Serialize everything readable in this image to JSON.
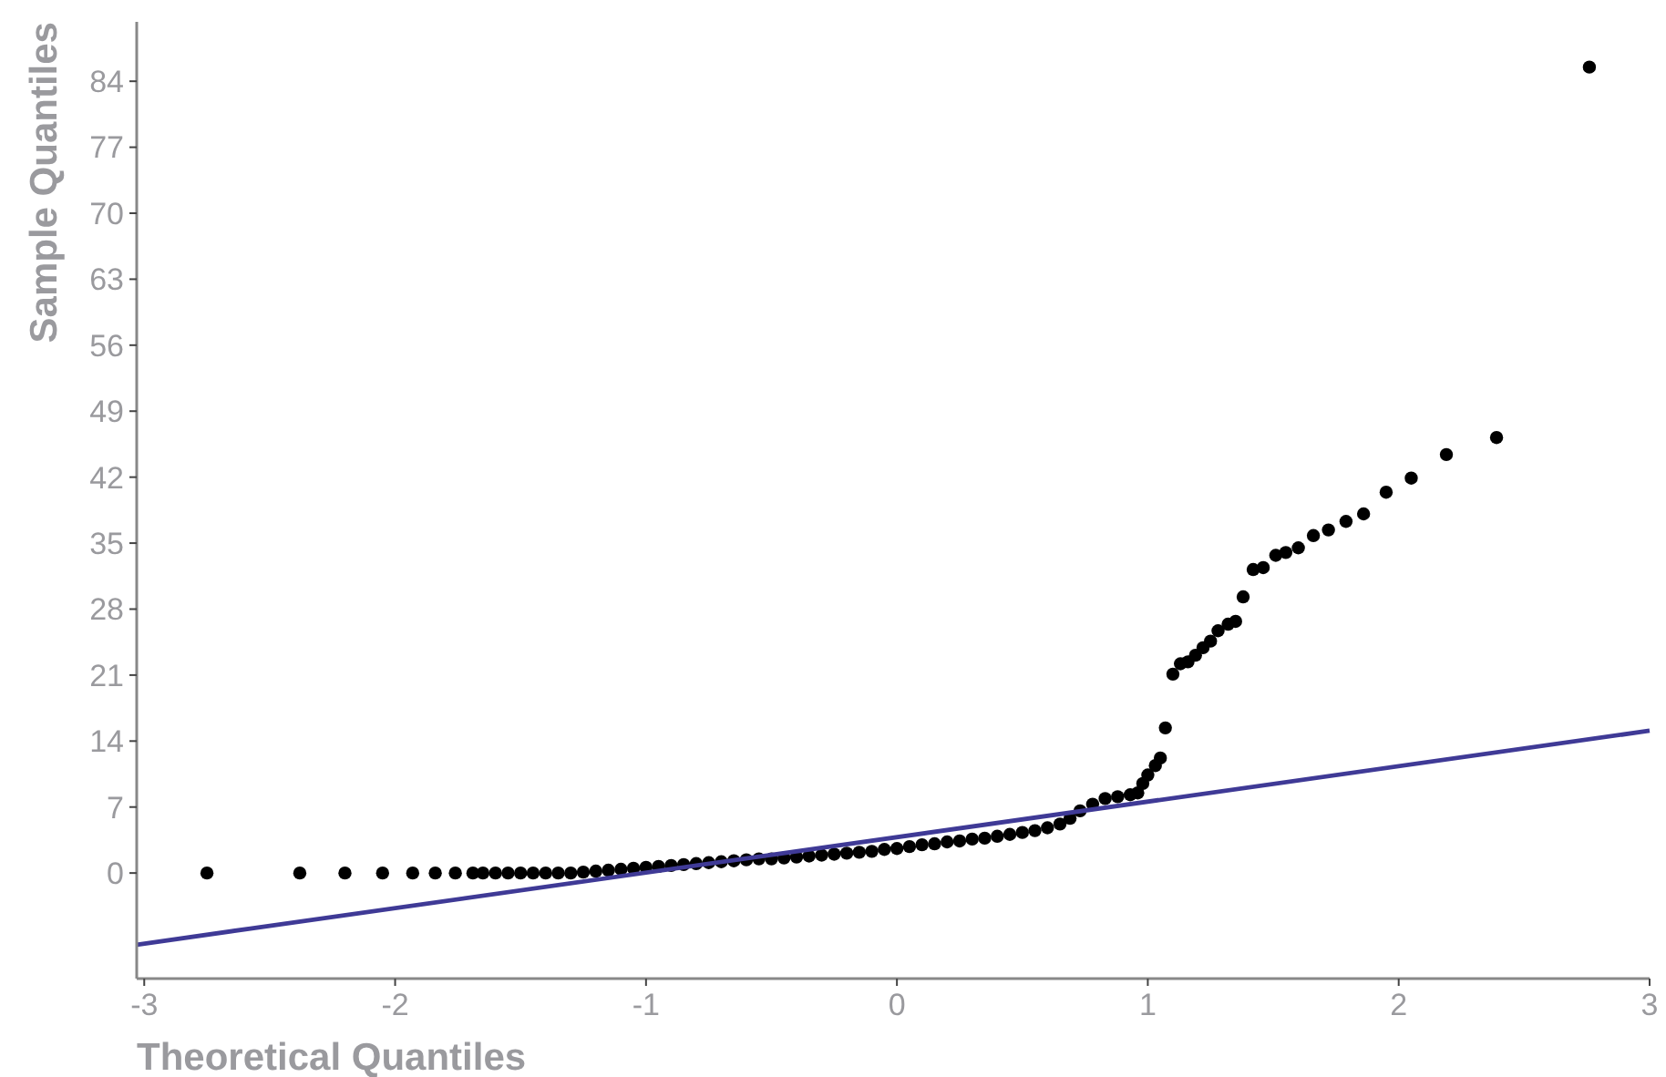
{
  "chart_data": {
    "type": "scatter",
    "xlabel": "Theoretical Quantiles",
    "ylabel": "Sample Quantiles",
    "xlim": [
      -3.03,
      3.0
    ],
    "ylim": [
      -11.2,
      90.3
    ],
    "xticks": [
      -3,
      -2,
      -1,
      0,
      1,
      2,
      3
    ],
    "yticks": [
      0,
      7,
      14,
      21,
      28,
      35,
      42,
      49,
      56,
      63,
      70,
      77,
      84
    ],
    "grid": false,
    "series": [
      {
        "marker": "circle",
        "color": "#000000",
        "x": [
          -2.75,
          -2.38,
          -2.2,
          -2.05,
          -1.93,
          -1.84,
          -1.76,
          -1.69,
          -1.65,
          -1.6,
          -1.55,
          -1.5,
          -1.45,
          -1.4,
          -1.35,
          -1.3,
          -1.25,
          -1.2,
          -1.15,
          -1.1,
          -1.05,
          -1.0,
          -0.95,
          -0.9,
          -0.85,
          -0.8,
          -0.75,
          -0.7,
          -0.65,
          -0.6,
          -0.55,
          -0.5,
          -0.45,
          -0.4,
          -0.35,
          -0.3,
          -0.25,
          -0.2,
          -0.15,
          -0.1,
          -0.05,
          0,
          0.05,
          0.1,
          0.15,
          0.2,
          0.25,
          0.3,
          0.35,
          0.4,
          0.45,
          0.5,
          0.55,
          0.6,
          0.65,
          0.69,
          0.73,
          0.78,
          0.83,
          0.88,
          0.93,
          0.96,
          0.98,
          1.0,
          1.03,
          1.05,
          1.07,
          1.1,
          1.13,
          1.16,
          1.19,
          1.22,
          1.25,
          1.28,
          1.32,
          1.35,
          1.38,
          1.42,
          1.46,
          1.51,
          1.55,
          1.6,
          1.66,
          1.72,
          1.79,
          1.86,
          1.95,
          2.05,
          2.19,
          2.39,
          2.76
        ],
        "values": [
          0,
          0,
          0,
          0,
          0,
          0,
          0,
          0,
          0,
          0,
          0,
          0,
          0,
          0,
          0,
          0,
          0.1,
          0.2,
          0.3,
          0.4,
          0.5,
          0.6,
          0.7,
          0.8,
          0.9,
          1.0,
          1.1,
          1.2,
          1.3,
          1.4,
          1.5,
          1.5,
          1.6,
          1.7,
          1.8,
          1.9,
          2.0,
          2.1,
          2.2,
          2.3,
          2.5,
          2.6,
          2.8,
          3.0,
          3.1,
          3.3,
          3.4,
          3.6,
          3.7,
          3.9,
          4.1,
          4.3,
          4.5,
          4.8,
          5.2,
          5.8,
          6.6,
          7.3,
          7.9,
          8.1,
          8.3,
          8.5,
          9.5,
          10.4,
          11.4,
          12.2,
          15.4,
          21.1,
          22.2,
          22.4,
          23.1,
          23.9,
          24.6,
          25.7,
          26.4,
          26.7,
          29.3,
          32.2,
          32.4,
          33.7,
          34.0,
          34.5,
          35.8,
          36.4,
          37.3,
          38.1,
          40.4,
          41.9,
          44.4,
          46.2,
          85.5
        ]
      },
      {
        "type": "line",
        "color": "#3f3a96",
        "x": [
          -3.03,
          3.0
        ],
        "values": [
          -7.6,
          15.1
        ]
      }
    ]
  }
}
